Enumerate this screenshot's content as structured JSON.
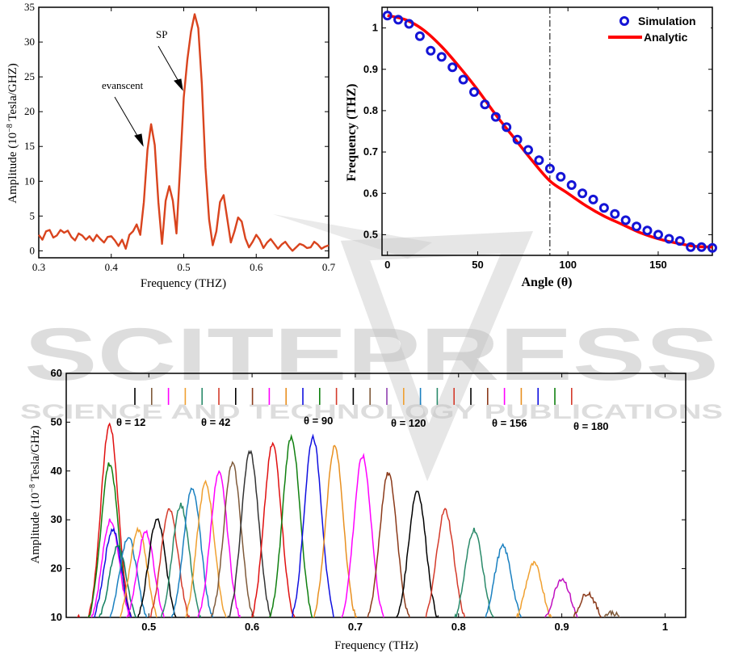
{
  "watermark": {
    "main": "SCITEPRESS",
    "sub": "SCIENCE AND TECHNOLOGY PUBLICATIONS"
  },
  "chart_data": [
    {
      "type": "line",
      "title": "",
      "xlabel": "Frequency (THZ)",
      "ylabel_prefix": "Amplitude (10",
      "ylabel_exp": "−8",
      "ylabel_suffix": " Tesla/GHZ)",
      "xlim": [
        0.3,
        0.7
      ],
      "ylim": [
        -1,
        35
      ],
      "xticks": [
        0.3,
        0.4,
        0.5,
        0.6,
        0.7
      ],
      "xtick_labels": [
        "0.3",
        "0.4",
        "0.5",
        "0.6",
        "0.7"
      ],
      "yticks": [
        0,
        5,
        10,
        15,
        20,
        25,
        30,
        35
      ],
      "ytick_labels": [
        "0",
        "5",
        "10",
        "15",
        "20",
        "25",
        "30",
        "35"
      ],
      "series": [
        {
          "color": "#d9441e",
          "x": [
            0.3,
            0.305,
            0.31,
            0.315,
            0.32,
            0.325,
            0.33,
            0.335,
            0.34,
            0.345,
            0.35,
            0.355,
            0.36,
            0.365,
            0.37,
            0.375,
            0.38,
            0.385,
            0.39,
            0.395,
            0.4,
            0.405,
            0.41,
            0.415,
            0.42,
            0.425,
            0.43,
            0.435,
            0.44,
            0.445,
            0.45,
            0.455,
            0.46,
            0.465,
            0.47,
            0.475,
            0.48,
            0.485,
            0.49,
            0.495,
            0.5,
            0.505,
            0.51,
            0.515,
            0.52,
            0.525,
            0.53,
            0.535,
            0.54,
            0.545,
            0.55,
            0.555,
            0.56,
            0.565,
            0.57,
            0.575,
            0.58,
            0.585,
            0.59,
            0.595,
            0.6,
            0.605,
            0.61,
            0.615,
            0.62,
            0.625,
            0.63,
            0.635,
            0.64,
            0.645,
            0.65,
            0.655,
            0.66,
            0.665,
            0.67,
            0.675,
            0.68,
            0.685,
            0.69,
            0.695,
            0.7
          ],
          "y": [
            2.3,
            1.6,
            2.8,
            3.0,
            1.9,
            2.2,
            3.0,
            2.6,
            2.9,
            2.0,
            1.5,
            2.5,
            2.2,
            1.6,
            2.1,
            1.4,
            2.3,
            1.7,
            1.2,
            2.0,
            2.1,
            1.5,
            0.7,
            1.6,
            0.3,
            2.3,
            2.8,
            3.8,
            2.3,
            7.0,
            14.5,
            18.2,
            15.2,
            7.0,
            1.0,
            7.2,
            9.3,
            7.2,
            2.5,
            12.0,
            22.0,
            27.5,
            31.5,
            34.0,
            32.0,
            24.0,
            12.0,
            4.5,
            0.8,
            2.8,
            7.0,
            8.0,
            4.6,
            1.2,
            2.8,
            4.8,
            4.2,
            1.8,
            0.5,
            1.3,
            2.3,
            1.6,
            0.4,
            1.2,
            1.7,
            1.0,
            0.3,
            0.9,
            1.3,
            0.6,
            0.0,
            0.5,
            1.0,
            0.8,
            0.4,
            0.5,
            1.3,
            0.9,
            0.3,
            0.6,
            0.8
          ]
        }
      ],
      "annotations": [
        "SP",
        "evanscent"
      ]
    },
    {
      "type": "line",
      "title": "",
      "xlabel": "Angle (θ)",
      "ylabel": "Frequency (THZ)",
      "xlim": [
        -3,
        180
      ],
      "ylim": [
        0.45,
        1.05
      ],
      "xticks": [
        0,
        50,
        100,
        150
      ],
      "xtick_labels": [
        "0",
        "50",
        "100",
        "150"
      ],
      "yticks": [
        0.5,
        0.6,
        0.7,
        0.8,
        0.9,
        1.0
      ],
      "ytick_labels": [
        "0.5",
        "0.6",
        "0.7",
        "0.8",
        "0.9",
        "1"
      ],
      "vline": 90,
      "legend": "top-right",
      "series": [
        {
          "name": "Simulation",
          "style": "markers",
          "color": "#1414d6",
          "x": [
            0,
            6,
            12,
            18,
            24,
            30,
            36,
            42,
            48,
            54,
            60,
            66,
            72,
            78,
            84,
            90,
            96,
            102,
            108,
            114,
            120,
            126,
            132,
            138,
            144,
            150,
            156,
            162,
            168,
            174,
            180
          ],
          "y": [
            1.03,
            1.02,
            1.01,
            0.98,
            0.945,
            0.93,
            0.905,
            0.875,
            0.845,
            0.815,
            0.785,
            0.76,
            0.73,
            0.705,
            0.68,
            0.66,
            0.64,
            0.62,
            0.6,
            0.585,
            0.565,
            0.55,
            0.535,
            0.52,
            0.51,
            0.5,
            0.49,
            0.485,
            0.47,
            0.47,
            0.468
          ]
        },
        {
          "name": "Analytic",
          "style": "line",
          "color": "#ff0000",
          "x": [
            0,
            10,
            20,
            30,
            40,
            50,
            60,
            70,
            80,
            90,
            100,
            110,
            120,
            130,
            140,
            150,
            160,
            170,
            180
          ],
          "y": [
            1.03,
            1.02,
            0.995,
            0.955,
            0.905,
            0.85,
            0.79,
            0.735,
            0.68,
            0.63,
            0.6,
            0.57,
            0.545,
            0.525,
            0.505,
            0.49,
            0.48,
            0.472,
            0.47
          ]
        }
      ]
    },
    {
      "type": "line",
      "title": "",
      "xlabel": "Frequency (THz)",
      "ylabel_prefix": "Amplitude (10",
      "ylabel_exp": "−8",
      "ylabel_suffix": " Tesla/GHz)",
      "xlim": [
        0.42,
        1.02
      ],
      "ylim": [
        10,
        60
      ],
      "xticks": [
        0.5,
        0.6,
        0.7,
        0.8,
        0.9,
        1.0
      ],
      "xtick_labels": [
        "0.5",
        "0.6",
        "0.7",
        "0.8",
        "0.9",
        "1"
      ],
      "yticks": [
        10,
        20,
        30,
        40,
        50,
        60
      ],
      "ytick_labels": [
        "10",
        "20",
        "30",
        "40",
        "50",
        "60"
      ],
      "legend_labels": [
        "θ = 12",
        "θ = 42",
        "θ = 90",
        "θ = 120",
        "θ = 156",
        "θ = 180"
      ],
      "colors": [
        "#000000",
        "#7f5a3a",
        "#ff00ff",
        "#f0a030",
        "#2a8a6a",
        "#d43a2a",
        "#000000",
        "#8b3a1a",
        "#ff00ff",
        "#e89020",
        "#1010e0",
        "#108010",
        "#d43a2a",
        "#000000",
        "#7f5a3a",
        "#9040b0",
        "#f0a030",
        "#1a80c0",
        "#2a8a6a",
        "#d43a2a",
        "#000000",
        "#8b3a1a",
        "#ff00ff",
        "#e89020",
        "#1010e0",
        "#108010",
        "#d43a2a"
      ],
      "peaks": [
        {
          "x": 0.462,
          "y": 49.5,
          "color": "#e01010"
        },
        {
          "x": 0.462,
          "y": 41.5,
          "color": "#108010"
        },
        {
          "x": 0.463,
          "y": 30.0,
          "color": "#ff00ff"
        },
        {
          "x": 0.465,
          "y": 28.0,
          "color": "#1010e0"
        },
        {
          "x": 0.47,
          "y": 24.5,
          "color": "#108060"
        },
        {
          "x": 0.48,
          "y": 26.5,
          "color": "#1a80c0"
        },
        {
          "x": 0.49,
          "y": 28.0,
          "color": "#f0a030"
        },
        {
          "x": 0.497,
          "y": 27.5,
          "color": "#ff00ff"
        },
        {
          "x": 0.508,
          "y": 30.0,
          "color": "#000000"
        },
        {
          "x": 0.52,
          "y": 32.0,
          "color": "#d43a2a"
        },
        {
          "x": 0.531,
          "y": 33.0,
          "color": "#2a8a6a"
        },
        {
          "x": 0.542,
          "y": 36.5,
          "color": "#1a80c0"
        },
        {
          "x": 0.555,
          "y": 37.5,
          "color": "#f0a030"
        },
        {
          "x": 0.568,
          "y": 39.5,
          "color": "#ff00ff"
        },
        {
          "x": 0.581,
          "y": 41.5,
          "color": "#7f5a3a"
        },
        {
          "x": 0.598,
          "y": 44.0,
          "color": "#333333"
        },
        {
          "x": 0.62,
          "y": 45.5,
          "color": "#e01010"
        },
        {
          "x": 0.638,
          "y": 47.0,
          "color": "#108010"
        },
        {
          "x": 0.659,
          "y": 47.0,
          "color": "#1010e0"
        },
        {
          "x": 0.68,
          "y": 45.0,
          "color": "#e89020"
        },
        {
          "x": 0.707,
          "y": 43.0,
          "color": "#ff00ff"
        },
        {
          "x": 0.732,
          "y": 39.5,
          "color": "#8b3a1a"
        },
        {
          "x": 0.76,
          "y": 36.0,
          "color": "#000000"
        },
        {
          "x": 0.787,
          "y": 32.0,
          "color": "#d43a2a"
        },
        {
          "x": 0.815,
          "y": 28.0,
          "color": "#2a8a6a"
        },
        {
          "x": 0.843,
          "y": 24.5,
          "color": "#1a80c0"
        },
        {
          "x": 0.873,
          "y": 21.0,
          "color": "#f0a030"
        },
        {
          "x": 0.9,
          "y": 18.0,
          "color": "#c010c0"
        },
        {
          "x": 0.925,
          "y": 15.0,
          "color": "#8b3a1a"
        },
        {
          "x": 0.948,
          "y": 11.0,
          "color": "#7f5a3a"
        }
      ]
    }
  ]
}
